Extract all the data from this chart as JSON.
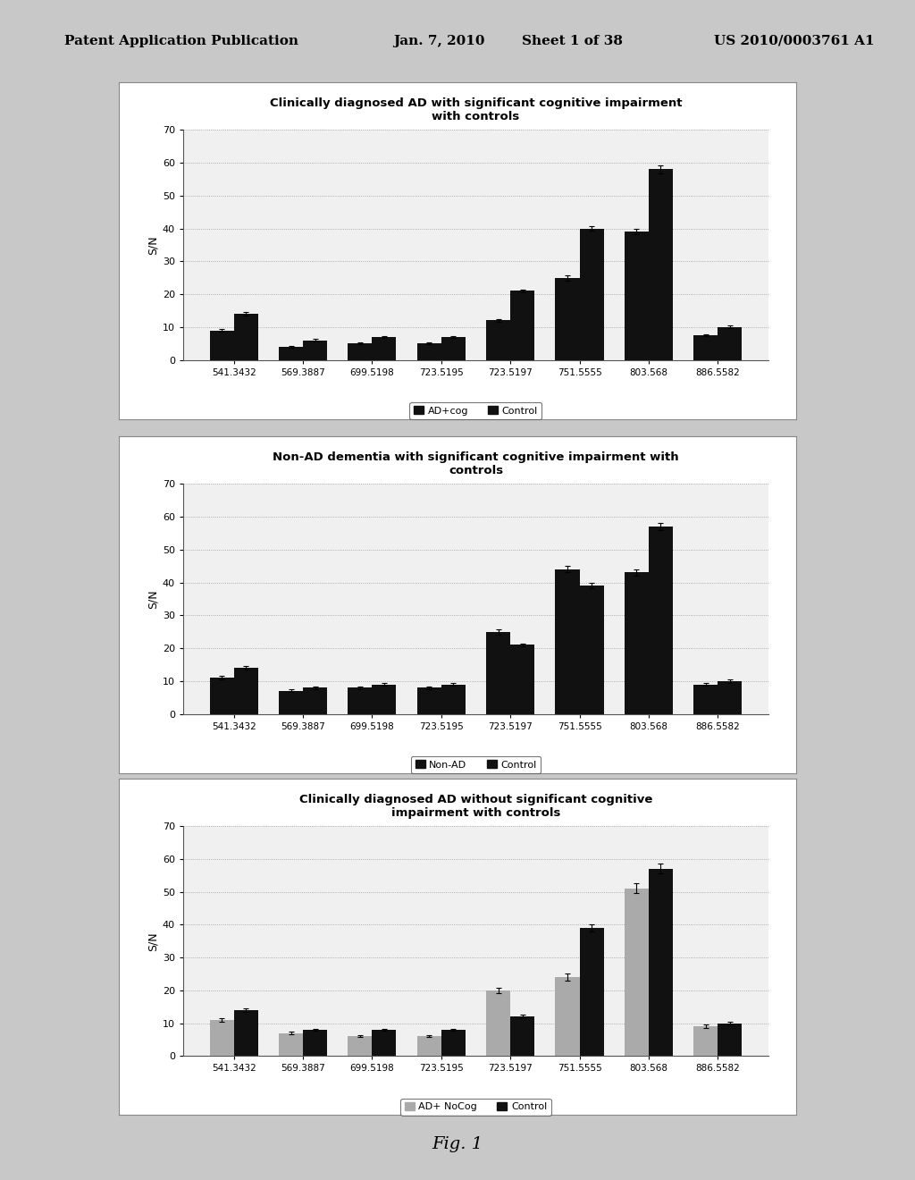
{
  "categories": [
    "541.3432",
    "569.3887",
    "699.5198",
    "723.5195",
    "723.5197",
    "751.5555",
    "803.568",
    "886.5582"
  ],
  "chart1": {
    "title": "Clinically diagnosed AD with significant cognitive impairment\nwith controls",
    "series1_label": "AD+cog",
    "series2_label": "Control",
    "series1_values": [
      9,
      4,
      5,
      5,
      12,
      25,
      39,
      7.5
    ],
    "series2_values": [
      14,
      6,
      7,
      7,
      21,
      40,
      58,
      10
    ],
    "series1_errors": [
      0.4,
      0.3,
      0.3,
      0.3,
      0.5,
      0.8,
      0.8,
      0.4
    ],
    "series2_errors": [
      0.5,
      0.3,
      0.3,
      0.3,
      0.5,
      0.7,
      1.2,
      0.4
    ],
    "ylim": [
      0,
      70
    ],
    "yticks": [
      0,
      10,
      20,
      30,
      40,
      50,
      60,
      70
    ],
    "ylabel": "S/N"
  },
  "chart2": {
    "title": "Non-AD dementia with significant cognitive impairment with\ncontrols",
    "series1_label": "Non-AD",
    "series2_label": "Control",
    "series1_values": [
      11,
      7,
      8,
      8,
      25,
      44,
      43,
      9
    ],
    "series2_values": [
      14,
      8,
      9,
      9,
      21,
      39,
      57,
      10
    ],
    "series1_errors": [
      0.5,
      0.4,
      0.4,
      0.4,
      0.8,
      1.0,
      1.0,
      0.5
    ],
    "series2_errors": [
      0.5,
      0.4,
      0.4,
      0.4,
      0.5,
      0.8,
      1.2,
      0.5
    ],
    "ylim": [
      0,
      70
    ],
    "yticks": [
      0,
      10,
      20,
      30,
      40,
      50,
      60,
      70
    ],
    "ylabel": "S/N"
  },
  "chart3": {
    "title": "Clinically diagnosed AD without significant cognitive\nimpairment with controls",
    "series1_label": "AD+ NoCog",
    "series2_label": "Control",
    "series1_values": [
      11,
      7,
      6,
      6,
      20,
      24,
      51,
      9
    ],
    "series2_values": [
      14,
      8,
      8,
      8,
      12,
      39,
      57,
      10
    ],
    "series1_errors": [
      0.5,
      0.4,
      0.3,
      0.3,
      0.8,
      1.0,
      1.5,
      0.5
    ],
    "series2_errors": [
      0.5,
      0.4,
      0.4,
      0.4,
      0.6,
      1.0,
      1.5,
      0.5
    ],
    "ylim": [
      0,
      70
    ],
    "yticks": [
      0,
      10,
      20,
      30,
      40,
      50,
      60,
      70
    ],
    "ylabel": "S/N",
    "series1_color": "#aaaaaa"
  },
  "bar_color_dark": "#111111",
  "bar_color_medium": "#333333",
  "bar_color_gray": "#aaaaaa",
  "page_bg": "#c8c8c8",
  "chart_bg": "#ffffff",
  "chart_plot_bg": "#f0f0f0",
  "header_patent": "US 2010/0003761 A1",
  "fig_label": "Fig. 1"
}
